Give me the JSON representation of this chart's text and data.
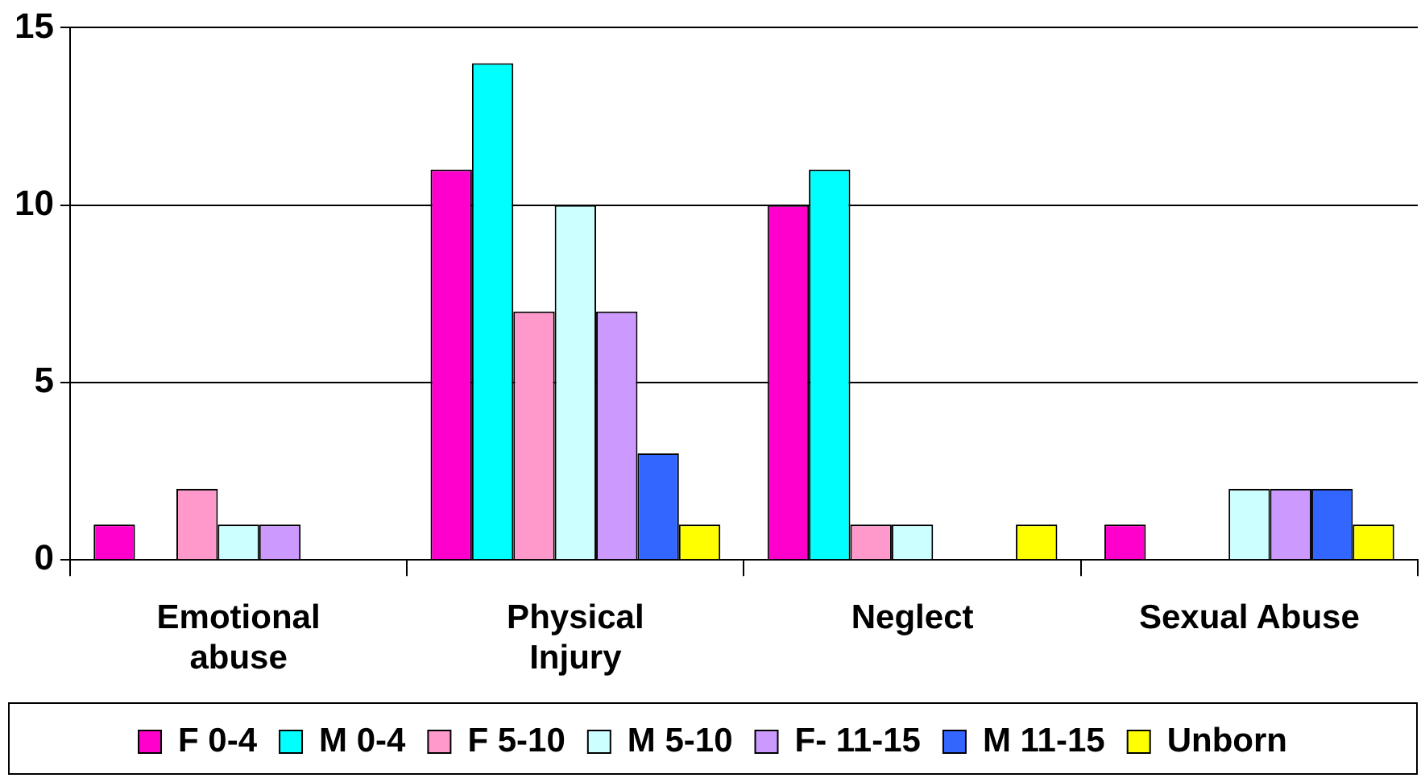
{
  "chart_data": {
    "type": "bar",
    "categories": [
      "Emotional abuse",
      "Physical Injury",
      "Neglect",
      "Sexual Abuse"
    ],
    "series": [
      {
        "name": "F 0-4",
        "color": "#ff00cc",
        "values": [
          1,
          11,
          10,
          1
        ]
      },
      {
        "name": "M 0-4",
        "color": "#00ffff",
        "values": [
          0,
          14,
          11,
          0
        ]
      },
      {
        "name": "F 5-10",
        "color": "#ff99cc",
        "values": [
          2,
          7,
          1,
          0
        ]
      },
      {
        "name": "M 5-10",
        "color": "#ccffff",
        "values": [
          1,
          10,
          1,
          2
        ]
      },
      {
        "name": "F- 11-15",
        "color": "#cc99ff",
        "values": [
          1,
          7,
          0,
          2
        ]
      },
      {
        "name": "M 11-15",
        "color": "#3366ff",
        "values": [
          0,
          3,
          0,
          2
        ]
      },
      {
        "name": "Unborn",
        "color": "#ffff00",
        "values": [
          0,
          1,
          1,
          1
        ]
      }
    ],
    "ylim": [
      0,
      15
    ],
    "yticks": [
      0,
      5,
      10,
      15
    ],
    "grid": "y",
    "legend": "bottom"
  }
}
